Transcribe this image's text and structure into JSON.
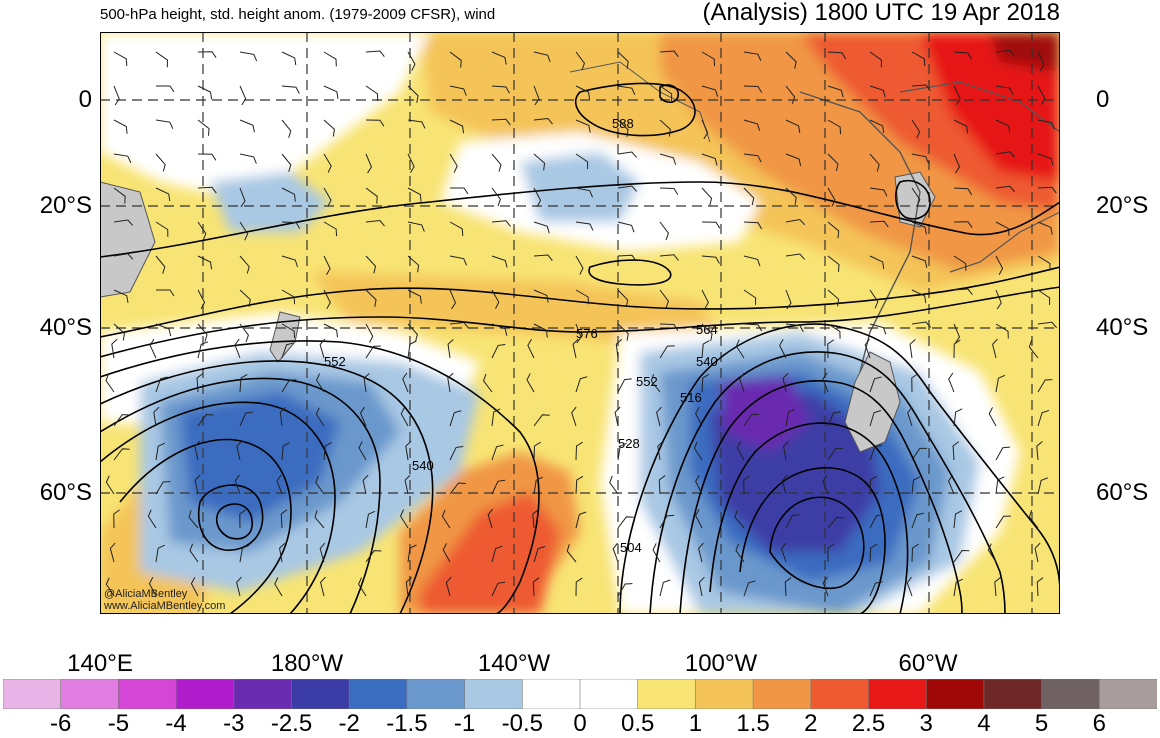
{
  "header": {
    "title_left": "500-hPa height, std. height anom. (1979-2009 CFSR), wind",
    "title_right": "(Analysis) 1800 UTC 19 Apr 2018"
  },
  "latitude_labels": [
    "0",
    "20°S",
    "40°S",
    "60°S"
  ],
  "longitude_labels": [
    "140°E",
    "180°W",
    "140°W",
    "100°W",
    "60°W"
  ],
  "contour_labels": [
    "588",
    "576",
    "564",
    "552",
    "540",
    "552",
    "540",
    "528",
    "516",
    "504"
  ],
  "credit": {
    "handle": "@AliciaMBentley",
    "site": "www.AliciaMBentley.com"
  },
  "colorbar": {
    "labels": [
      "-6",
      "-5",
      "-4",
      "-3",
      "-2.5",
      "-2",
      "-1.5",
      "-1",
      "-0.5",
      "0",
      "0.5",
      "1",
      "1.5",
      "2",
      "2.5",
      "3",
      "4",
      "5",
      "6"
    ],
    "colors": [
      "#e8b4e8",
      "#e27ee2",
      "#d646d6",
      "#b01ccc",
      "#6a2cb0",
      "#3c3ca6",
      "#3a6cc0",
      "#6a98cc",
      "#a8c8e4",
      "#ffffff",
      "#ffffff",
      "#f8e474",
      "#f4c458",
      "#f09644",
      "#ee5a30",
      "#e61818",
      "#a00808",
      "#6e2828",
      "#706262",
      "#a89c9c"
    ]
  },
  "map_colors": {
    "land": "#c8c8c8",
    "coast": "#555555",
    "contour": "#000000"
  }
}
